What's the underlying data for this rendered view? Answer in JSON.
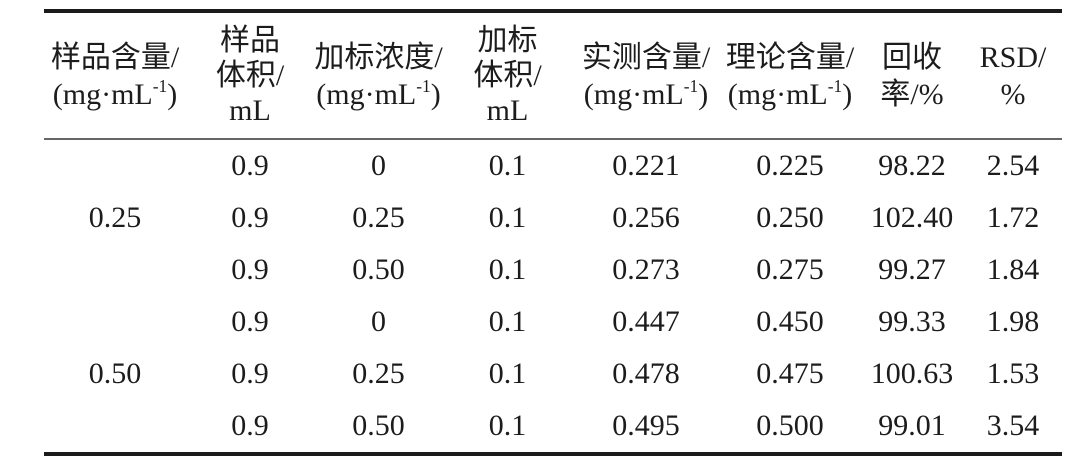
{
  "table": {
    "headers": {
      "sample_content": {
        "title": "样品含量/",
        "unit_pre": "(mg·mL",
        "unit_sup": "-1",
        "unit_post": ")"
      },
      "sample_volume": {
        "line1": "样品",
        "line2": "体积/",
        "line3": "mL"
      },
      "spike_conc": {
        "title": "加标浓度/",
        "unit_pre": "(mg·mL",
        "unit_sup": "-1",
        "unit_post": ")"
      },
      "spike_volume": {
        "line1": "加标",
        "line2": "体积/",
        "line3": "mL"
      },
      "measured": {
        "title": "实测含量/",
        "unit_pre": "(mg·mL",
        "unit_sup": "-1",
        "unit_post": ")"
      },
      "theoretical": {
        "title": "理论含量/",
        "unit_pre": "(mg·mL",
        "unit_sup": "-1",
        "unit_post": ")"
      },
      "recovery": {
        "line1": "回收",
        "line2": "率/%"
      },
      "rsd": {
        "line1": "RSD/",
        "line2": "%"
      }
    },
    "groups": [
      {
        "sample_content": "0.25"
      },
      {
        "sample_content": "0.50"
      }
    ],
    "rows": [
      {
        "sample_volume": "0.9",
        "spike_conc": "0",
        "spike_volume": "0.1",
        "measured": "0.221",
        "theoretical": "0.225",
        "recovery": "98.22",
        "rsd": "2.54"
      },
      {
        "sample_volume": "0.9",
        "spike_conc": "0.25",
        "spike_volume": "0.1",
        "measured": "0.256",
        "theoretical": "0.250",
        "recovery": "102.40",
        "rsd": "1.72"
      },
      {
        "sample_volume": "0.9",
        "spike_conc": "0.50",
        "spike_volume": "0.1",
        "measured": "0.273",
        "theoretical": "0.275",
        "recovery": "99.27",
        "rsd": "1.84"
      },
      {
        "sample_volume": "0.9",
        "spike_conc": "0",
        "spike_volume": "0.1",
        "measured": "0.447",
        "theoretical": "0.450",
        "recovery": "99.33",
        "rsd": "1.98"
      },
      {
        "sample_volume": "0.9",
        "spike_conc": "0.25",
        "spike_volume": "0.1",
        "measured": "0.478",
        "theoretical": "0.475",
        "recovery": "100.63",
        "rsd": "1.53"
      },
      {
        "sample_volume": "0.9",
        "spike_conc": "0.50",
        "spike_volume": "0.1",
        "measured": "0.495",
        "theoretical": "0.500",
        "recovery": "99.01",
        "rsd": "3.54"
      }
    ],
    "colors": {
      "rule_heavy": "#1b1b1b",
      "rule_light": "#666666",
      "text": "#1c1c1c",
      "background": "#ffffff"
    }
  }
}
